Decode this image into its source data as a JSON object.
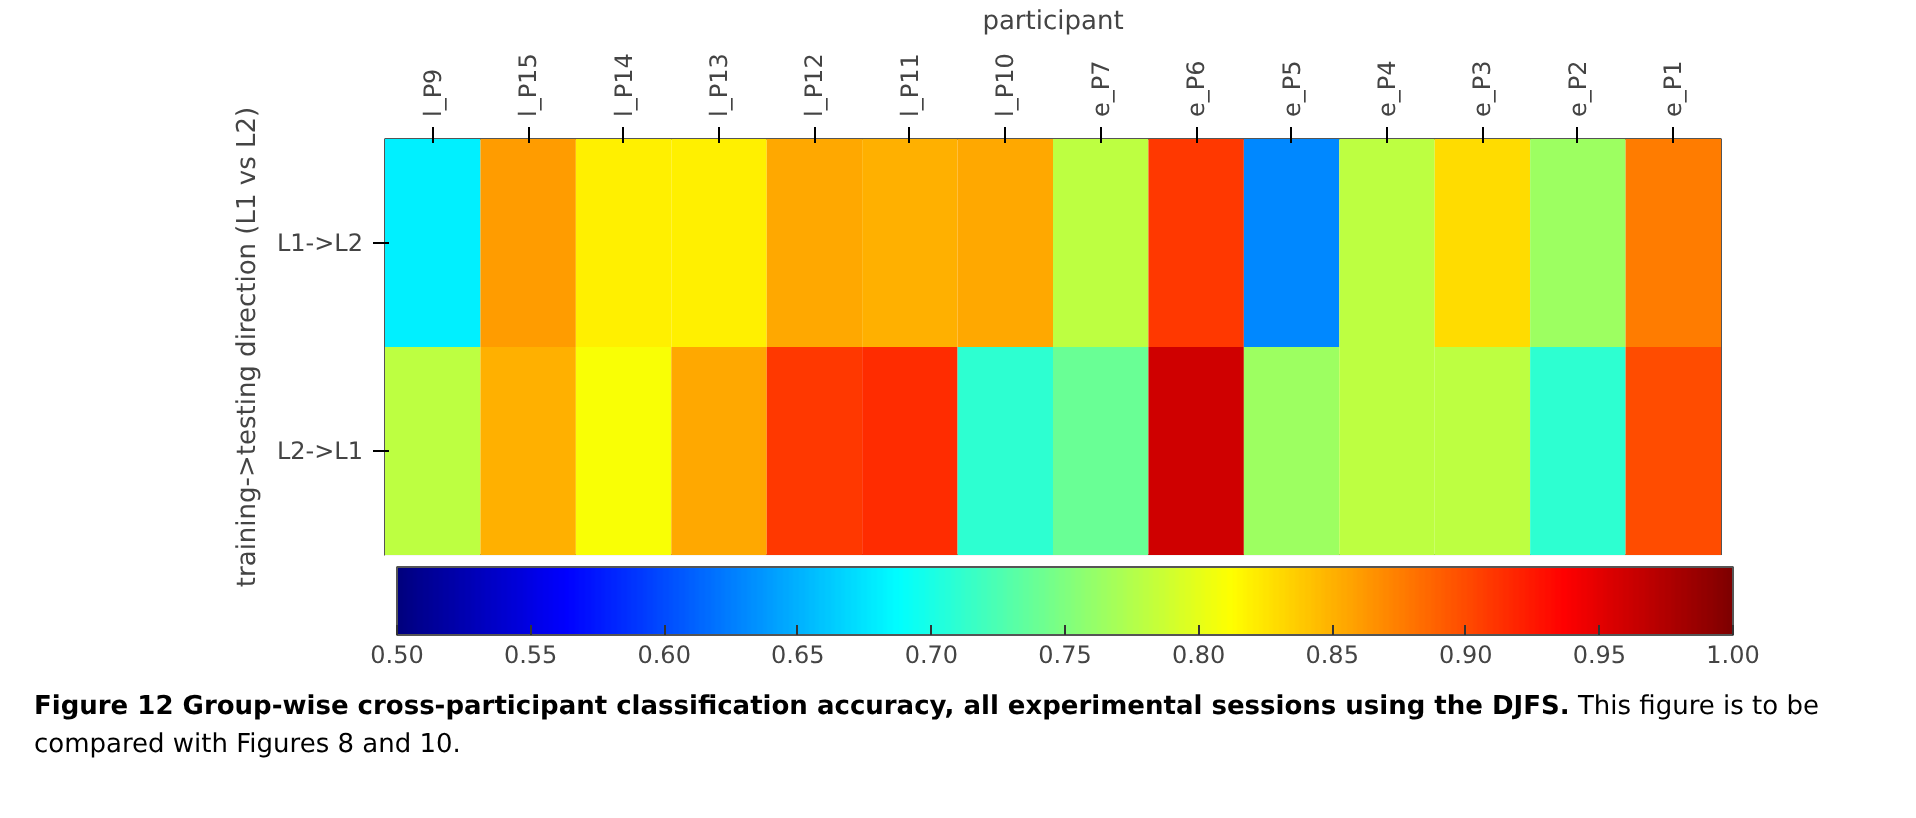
{
  "chart_data": {
    "type": "heatmap",
    "xlabel": "participant",
    "ylabel": "training->testing direction (L1 vs L2)",
    "categories": [
      "l_P9",
      "l_P15",
      "l_P14",
      "l_P13",
      "l_P12",
      "l_P11",
      "l_P10",
      "e_P7",
      "e_P6",
      "e_P5",
      "e_P4",
      "e_P3",
      "e_P2",
      "e_P1"
    ],
    "y_categories": [
      "L1->L2",
      "L2->L1"
    ],
    "cells": [
      [
        0.68,
        0.86,
        0.82,
        0.82,
        0.855,
        0.85,
        0.855,
        0.78,
        0.91,
        0.63,
        0.78,
        0.83,
        0.765,
        0.875
      ],
      [
        0.78,
        0.85,
        0.81,
        0.855,
        0.91,
        0.915,
        0.71,
        0.74,
        0.96,
        0.765,
        0.78,
        0.78,
        0.71,
        0.9
      ]
    ],
    "clim": [
      0.5,
      1.0
    ],
    "cticks": [
      {
        "value": 0.5,
        "label": "0.50"
      },
      {
        "value": 0.55,
        "label": "0.55"
      },
      {
        "value": 0.6,
        "label": "0.60"
      },
      {
        "value": 0.65,
        "label": "0.65"
      },
      {
        "value": 0.7,
        "label": "0.70"
      },
      {
        "value": 0.75,
        "label": "0.75"
      },
      {
        "value": 0.8,
        "label": "0.80"
      },
      {
        "value": 0.85,
        "label": "0.85"
      },
      {
        "value": 0.9,
        "label": "0.90"
      },
      {
        "value": 0.95,
        "label": "0.95"
      },
      {
        "value": 1.0,
        "label": "1.00"
      }
    ],
    "annotations": [
      "Figure 12 Group-wise cross-participant classification accuracy, all experimental sessions using the DJFS.",
      "This figure is to be compared with Figures 8 and 10."
    ]
  }
}
